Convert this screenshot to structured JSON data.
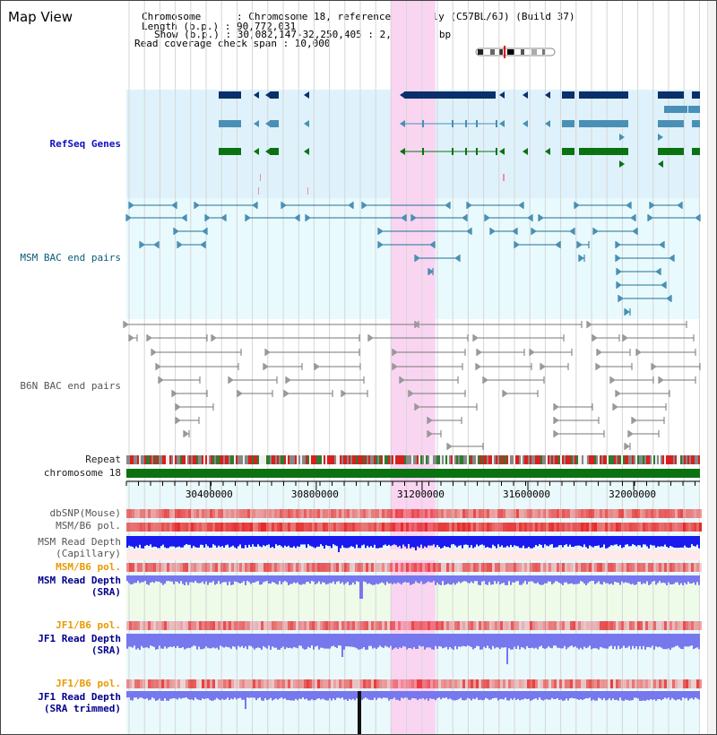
{
  "view_title": "Map View",
  "info_lines": [
    "Chromosome      : Chromosome 18, reference assembly (C57BL/6J) (Build 37)",
    "Length (b.p.) : 90,772,031",
    "Show (b.p.) : 30,082,147-32,250,405 : 2,168,259 bp",
    "Read coverage check span : 10,000"
  ],
  "tracks": {
    "refseq": "RefSeq Genes",
    "msm_bac": "MSM BAC end pairs",
    "b6n_bac": "B6N BAC end pairs",
    "repeat": "Repeat",
    "chromosome": "chromosome 18",
    "dbsnp": "dbSNP(Mouse)",
    "msm_b6_pol": "MSM/B6 pol.",
    "msm_read_depth_cap_1": "MSM Read Depth",
    "msm_read_depth_cap_2": "(Capillary)",
    "msm_b6_pol_sra": "MSM/B6 pol.",
    "msm_read_depth_sra_1": "MSM Read Depth",
    "msm_read_depth_sra_2": "(SRA)",
    "jf1_b6_pol": "JF1/B6 pol.",
    "jf1_read_depth_1": "JF1 Read Depth",
    "jf1_read_depth_2": "(SRA)",
    "jf1_b6_pol_2": "JF1/B6 pol.",
    "jf1_trimmed_1": "JF1 Read Depth",
    "jf1_trimmed_2": "(SRA trimmed)"
  },
  "axis": {
    "ticks": [
      "30400000",
      "30800000",
      "31200000",
      "31600000",
      "32000000"
    ],
    "tick_values": [
      30400000,
      30800000,
      31200000,
      31600000,
      32000000
    ],
    "range": [
      30082147,
      32250405
    ]
  },
  "highlight_range": [
    31080000,
    31250000
  ],
  "colors": {
    "refseq_bg": "#dff2fb",
    "msm_bg": "#e8fafd",
    "highlight": "#f9d5f1",
    "gene_navy": "#0b2f6b",
    "gene_steel": "#4a8fb5",
    "gene_green": "#0b7212",
    "msm_line": "#1f6f95",
    "b6n_line": "#777777",
    "chromosome": "#0b7212",
    "depth_blue": "#1a1aee",
    "depth_light": "#7777ee"
  }
}
